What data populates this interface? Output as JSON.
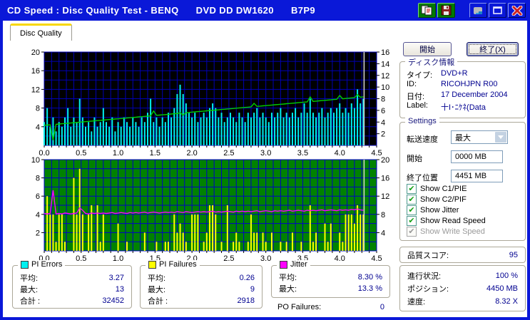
{
  "window": {
    "title": "CD Speed : Disc Quality Test - BENQ      DVD DD DW1620      B7P9"
  },
  "titlebar_icons": [
    "copy-icon",
    "save-icon",
    "minimize-icon",
    "maximize-icon",
    "close-icon"
  ],
  "tab": {
    "label": "Disc Quality"
  },
  "actions": {
    "start": "開始",
    "exit": "終了(X)"
  },
  "disc_info": {
    "title": "ディスク情報",
    "rows": [
      {
        "label": "タイプ:",
        "value": "DVD+R"
      },
      {
        "label": "ID:",
        "value": "RICOHJPN R00"
      },
      {
        "label": "日付:",
        "value": "17 December 2004"
      },
      {
        "label": "Label:",
        "value": "十I･ﾆｹﾈ(Data"
      }
    ]
  },
  "settings": {
    "title": "Settings",
    "transfer_speed": {
      "label": "転送速度",
      "value": "最大"
    },
    "start": {
      "label": "開始",
      "value": "0000 MB"
    },
    "end_position": {
      "label": "終了位置",
      "value": "4451 MB"
    },
    "checkboxes": [
      {
        "label": "Show C1/PIE",
        "checked": true,
        "disabled": false
      },
      {
        "label": "Show C2/PIF",
        "checked": true,
        "disabled": false
      },
      {
        "label": "Show Jitter",
        "checked": true,
        "disabled": false
      },
      {
        "label": "Show Read Speed",
        "checked": true,
        "disabled": false
      },
      {
        "label": "Show Write Speed",
        "checked": true,
        "disabled": true
      }
    ]
  },
  "quality_score": {
    "label": "品質スコア:",
    "value": "95"
  },
  "progress": {
    "rows": [
      {
        "label": "進行状況:",
        "value": "100 %"
      },
      {
        "label": "ポジション:",
        "value": "4450 MB"
      },
      {
        "label": "速度:",
        "value": "8.32 X"
      }
    ]
  },
  "stats": {
    "pi_errors": {
      "title": "PI Errors",
      "color": "#00F0F0",
      "rows": [
        {
          "label": "平均:",
          "value": "3.27"
        },
        {
          "label": "最大:",
          "value": "13"
        },
        {
          "label": "合計 :",
          "value": "32452"
        }
      ]
    },
    "pi_failures": {
      "title": "PI Failures",
      "color": "#FFFF00",
      "rows": [
        {
          "label": "平均:",
          "value": "0.26"
        },
        {
          "label": "最大:",
          "value": "9"
        },
        {
          "label": "合計 :",
          "value": "2918"
        }
      ]
    },
    "jitter": {
      "title": "Jitter",
      "color": "#FF00FF",
      "rows": [
        {
          "label": "平均:",
          "value": "8.30 %"
        },
        {
          "label": "最大:",
          "value": "13.3 %"
        }
      ]
    },
    "po_failures": {
      "label": "PO Failures:",
      "value": "0"
    }
  },
  "colors": {
    "titlebar": "#0A18D8",
    "value_text": "#000090",
    "tab_highlight": "#F8D800"
  },
  "chart_data": [
    {
      "type": "bar",
      "title": "PI Errors (cyan bars, left axis) and Read Speed (green line, right axis)",
      "x_ticks": [
        "0.0",
        "0.5",
        "1.0",
        "1.5",
        "2.0",
        "2.5",
        "3.0",
        "3.5",
        "4.0",
        "4.5"
      ],
      "x_max": 4.5,
      "x_step": 0.04,
      "data_end_x": 4.33,
      "left_axis": {
        "min": 0,
        "max": 20,
        "grid": 2,
        "ticks": [
          4,
          8,
          12,
          16,
          20
        ]
      },
      "right_axis": {
        "min": 0,
        "max": 16,
        "ticks": [
          2,
          4,
          6,
          8,
          10,
          12,
          14,
          16
        ]
      },
      "bg": "#000000",
      "grid_color": "#0000B4",
      "cursor_color": "#D8D8D8",
      "series": [
        {
          "name": "pi-errors-c1-pie",
          "type": "bar",
          "axis": "left",
          "color": "#00F0F0",
          "values": [
            5,
            8,
            4,
            6,
            3,
            5,
            4,
            6,
            8,
            4,
            6,
            5,
            10,
            6,
            4,
            5,
            3,
            6,
            4,
            5,
            8,
            5,
            4,
            6,
            3,
            5,
            4,
            6,
            5,
            4,
            6,
            5,
            4,
            6,
            5,
            7,
            10,
            5,
            6,
            4,
            6,
            5,
            7,
            6,
            8,
            11,
            13,
            11,
            9,
            7,
            6,
            7,
            5,
            6,
            7,
            6,
            8,
            9,
            8,
            6,
            7,
            5,
            6,
            7,
            6,
            5,
            7,
            6,
            5,
            7,
            6,
            7,
            8,
            6,
            7,
            6,
            5,
            7,
            6,
            7,
            8,
            6,
            7,
            6,
            7,
            8,
            6,
            7,
            9,
            7,
            10,
            7,
            6,
            7,
            8,
            6,
            7,
            8,
            7,
            8,
            9,
            7,
            8,
            7,
            9,
            8,
            12,
            9,
            10
          ]
        },
        {
          "name": "read-speed",
          "type": "line",
          "axis": "right",
          "color": "#00CE00",
          "values": [
            3.44,
            3.48,
            3.53,
            0.9,
            3.62,
            3.66,
            3.71,
            3.75,
            3.8,
            3.84,
            3.89,
            3.93,
            3.98,
            4.02,
            4.07,
            4.11,
            4.16,
            4.2,
            4.25,
            4.29,
            4.34,
            4.38,
            4.43,
            4.47,
            4.52,
            4.56,
            4.61,
            4.65,
            4.7,
            4.74,
            4.79,
            4.83,
            4.88,
            4.92,
            4.97,
            5.01,
            5.06,
            5.9,
            5.15,
            5.19,
            5.24,
            5.28,
            5.33,
            5.37,
            5.42,
            5.46,
            5.6,
            5.2,
            5.6,
            5.64,
            5.7,
            5.74,
            5.79,
            5.83,
            5.88,
            5.92,
            5.97,
            6.01,
            6.06,
            6.1,
            6.15,
            6.19,
            6.24,
            6.28,
            6.33,
            6.37,
            6.42,
            6.46,
            6.51,
            6.55,
            6.6,
            7.2,
            6.69,
            6.73,
            6.78,
            6.82,
            6.87,
            6.91,
            6.96,
            7.0,
            7.05,
            7.09,
            7.14,
            7.18,
            7.23,
            7.27,
            7.32,
            7.36,
            7.41,
            7.45,
            8.3,
            7.54,
            7.59,
            7.63,
            7.68,
            7.72,
            7.77,
            7.81,
            7.86,
            7.9,
            8.55,
            7.99,
            8.04,
            8.08,
            8.13,
            8.17,
            8.7,
            8.26,
            8.32
          ]
        }
      ]
    },
    {
      "type": "bar",
      "title": "PI Failures (yellow bars, left axis) and Jitter % (magenta line, right axis)",
      "x_ticks": [
        "0.0",
        "0.5",
        "1.0",
        "1.5",
        "2.0",
        "2.5",
        "3.0",
        "3.5",
        "4.0",
        "4.5"
      ],
      "x_max": 4.5,
      "x_step": 0.04,
      "data_end_x": 4.33,
      "left_axis": {
        "min": 0,
        "max": 10,
        "grid": 1,
        "ticks": [
          2,
          4,
          6,
          8,
          10
        ]
      },
      "right_axis": {
        "min": 0,
        "max": 20,
        "ticks": [
          4,
          8,
          12,
          16,
          20
        ]
      },
      "bg": "#008200",
      "grid_color": "#0000C8",
      "cursor_color": "#D8D8D8",
      "series": [
        {
          "name": "pi-failures-c2-pif",
          "type": "bar",
          "axis": "left",
          "color": "#FFFF00",
          "values": [
            0,
            6,
            4,
            4,
            1,
            4,
            4,
            1,
            0,
            0,
            8,
            4,
            9,
            4,
            0,
            4,
            5,
            0,
            5,
            1,
            4,
            0,
            0,
            0,
            0,
            3,
            0,
            0,
            1,
            0,
            0,
            0,
            0,
            0,
            2,
            0,
            0,
            0,
            1,
            0,
            0,
            1,
            1,
            0,
            4,
            2,
            3,
            2,
            1,
            0,
            4,
            4,
            4,
            0,
            1,
            2,
            5,
            5,
            4,
            0,
            1,
            0,
            5,
            0,
            1,
            2,
            1,
            0,
            0,
            1,
            4,
            2,
            2,
            0,
            2,
            1,
            0,
            2,
            0,
            0,
            1,
            0,
            1,
            0,
            2,
            0,
            0,
            1,
            0,
            0,
            5,
            1,
            2,
            0,
            0,
            3,
            1,
            3,
            0,
            0,
            2,
            1,
            4,
            4,
            4,
            3,
            5,
            4,
            4
          ]
        },
        {
          "name": "jitter",
          "type": "line",
          "axis": "right",
          "color": "#FF00FF",
          "values": [
            8.2,
            8.1,
            8.2,
            13.3,
            8.1,
            8.2,
            8.1,
            8.3,
            8.2,
            8.1,
            8.2,
            8.3,
            9.4,
            8.9,
            8.2,
            8.1,
            8.3,
            8.2,
            8.3,
            8.2,
            8.3,
            8.2,
            8.3,
            8.4,
            8.2,
            8.3,
            8.4,
            8.3,
            8.2,
            8.4,
            8.3,
            8.4,
            8.3,
            8.4,
            8.5,
            8.3,
            8.4,
            8.5,
            8.4,
            8.3,
            8.4,
            8.5,
            8.4,
            8.5,
            8.4,
            8.6,
            8.5,
            8.4,
            8.6,
            8.5,
            8.4,
            8.5,
            8.6,
            8.5,
            8.6,
            8.5,
            8.6,
            8.7,
            8.5,
            8.6,
            8.5,
            8.6,
            8.7,
            8.6,
            8.5,
            8.7,
            8.6,
            8.7,
            8.6,
            8.7,
            8.6,
            8.7,
            8.8,
            8.6,
            8.7,
            8.8,
            8.7,
            8.6,
            8.8,
            8.7,
            8.8,
            8.7,
            8.8,
            8.9,
            8.7,
            8.8,
            8.9,
            8.8,
            8.7,
            8.9,
            8.8,
            8.9,
            8.8,
            8.9,
            9.0,
            8.8,
            8.9,
            9.0,
            8.9,
            8.8,
            9.0,
            8.9,
            9.0,
            8.9,
            9.1,
            9.0,
            9.2,
            9.0,
            8.9
          ]
        }
      ]
    }
  ]
}
